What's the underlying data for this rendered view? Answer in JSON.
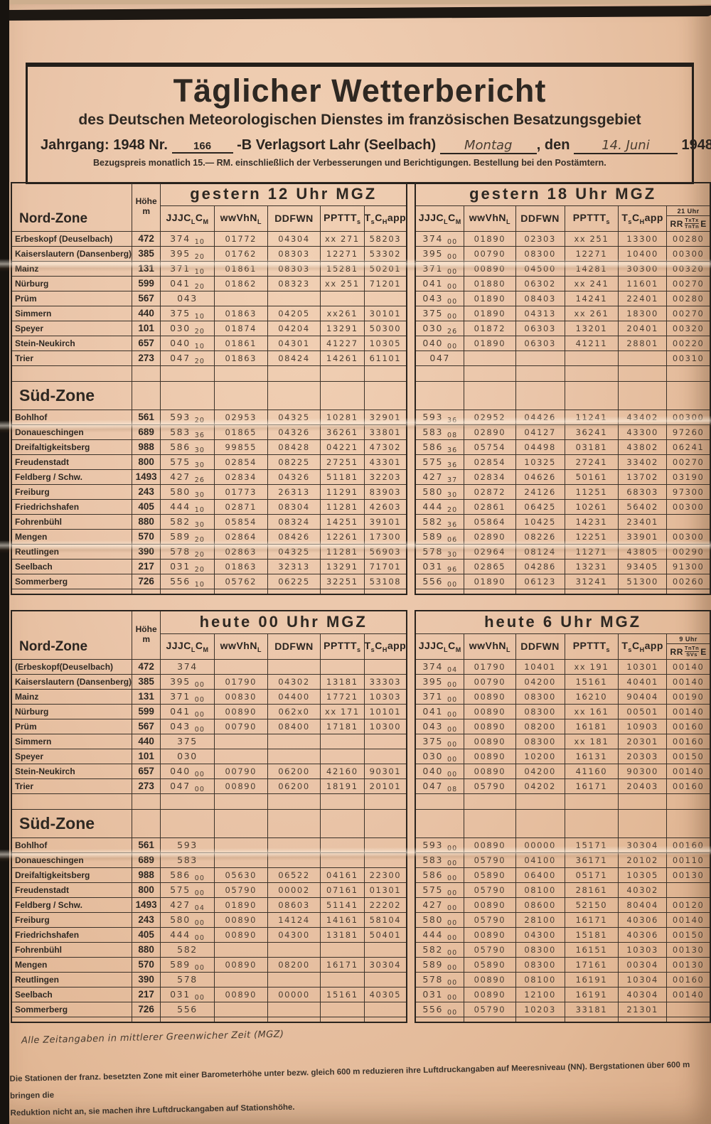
{
  "page": {
    "title": "Täglicher Wetterbericht",
    "subtitle": "des Deutschen Meteorologischen Dienstes im französischen Besatzungsgebiet",
    "issue_line": {
      "prefix": "Jahrgang: 1948 Nr.",
      "number": "166",
      "middle": "-B Verlagsort Lahr (Seelbach)",
      "weekday": "Montag",
      "comma_den": ", den",
      "date": "14. Juni",
      "year": "1948"
    },
    "price_line": "Bezugspreis monatlich 15.— RM. einschließlich der Verbesserungen und Berichtigungen. Bestellung bei den Postämtern.",
    "footnote_handwritten": "Alle Zeitangaben in mittlerer Greenwicher Zeit (MGZ)",
    "footnote_printed_1": "Die Stationen der franz. besetzten Zone mit einer Barometerhöhe unter bezw. gleich 600 m reduzieren ihre Luftdruckangaben auf Meeresniveau (NN). Bergstationen über 600 m bringen die",
    "footnote_printed_2": "Reduktion nicht an, sie machen ihre Luftdruckangaben auf Stationshöhe."
  },
  "tables": [
    {
      "id": "gestern",
      "zone_label": "Nord-Zone",
      "sued_label": "Süd-Zone",
      "hoehe_label": "Höhe",
      "hoehe_unit": "m",
      "left_title": "gestern 12 Uhr MGZ",
      "right_title": "gestern 18 Uhr MGZ",
      "col_headers": [
        "JJJC~L~C~M~",
        "wwVhN~L~",
        "DDFWN",
        "PPTTT~s~",
        "T~s~C~H~app"
      ],
      "rr_header": {
        "time": "21 Uhr",
        "pre": "RR",
        "frac_top": "TxTx",
        "frac_bottom": "TnTn",
        "post": "E"
      },
      "nord_rows": [
        {
          "station": "Erbeskopf (Deuselbach)",
          "hoehe": "472",
          "left_cells": [
            "374 10",
            "01772",
            "04304",
            "xx 271",
            "58203"
          ],
          "right_cells": [
            "374 00",
            "01890",
            "02303",
            "xx 251",
            "13300",
            "00280"
          ]
        },
        {
          "station": "Kaiserslautern (Dansenberg)",
          "hoehe": "385",
          "left_cells": [
            "395 20",
            "01762",
            "08303",
            "12271",
            "53302"
          ],
          "right_cells": [
            "395 00",
            "00790",
            "08300",
            "12271",
            "10400",
            "00300"
          ]
        },
        {
          "station": "Mainz",
          "hoehe": "131",
          "left_cells": [
            "371 10",
            "01861",
            "08303",
            "15281",
            "50201"
          ],
          "right_cells": [
            "371 00",
            "00890",
            "04500",
            "14281",
            "30300",
            "00320"
          ]
        },
        {
          "station": "Nürburg",
          "hoehe": "599",
          "left_cells": [
            "041 20",
            "01862",
            "08323",
            "xx 251",
            "71201"
          ],
          "right_cells": [
            "041 00",
            "01880",
            "06302",
            "xx 241",
            "11601",
            "00270"
          ]
        },
        {
          "station": "Prüm",
          "hoehe": "567",
          "left_cells": [
            "043",
            "",
            "",
            "",
            ""
          ],
          "right_cells": [
            "043 00",
            "01890",
            "08403",
            "14241",
            "22401",
            "00280"
          ]
        },
        {
          "station": "Simmern",
          "hoehe": "440",
          "left_cells": [
            "375 10",
            "01863",
            "04205",
            "xx261",
            "30101"
          ],
          "right_cells": [
            "375 00",
            "01890",
            "04313",
            "xx 261",
            "18300",
            "00270"
          ]
        },
        {
          "station": "Speyer",
          "hoehe": "101",
          "left_cells": [
            "030 20",
            "01874",
            "04204",
            "13291",
            "50300"
          ],
          "right_cells": [
            "030 26",
            "01872",
            "06303",
            "13201",
            "20401",
            "00320"
          ]
        },
        {
          "station": "Stein-Neukirch",
          "hoehe": "657",
          "left_cells": [
            "040 10",
            "01861",
            "04301",
            "41227",
            "10305"
          ],
          "right_cells": [
            "040 00",
            "01890",
            "06303",
            "41211",
            "28801",
            "00220"
          ]
        },
        {
          "station": "Trier",
          "hoehe": "273",
          "left_cells": [
            "047 20",
            "01863",
            "08424",
            "14261",
            "61101"
          ],
          "right_cells": [
            "047",
            "",
            "",
            "",
            "",
            "00310"
          ]
        }
      ],
      "sued_rows": [
        {
          "station": "Bohlhof",
          "hoehe": "561",
          "left_cells": [
            "593 20",
            "02953",
            "04325",
            "10281",
            "32901"
          ],
          "right_cells": [
            "593 36",
            "02952",
            "04426",
            "11241",
            "43402",
            "00300"
          ]
        },
        {
          "station": "Donaueschingen",
          "hoehe": "689",
          "left_cells": [
            "583 36",
            "01865",
            "04326",
            "36261",
            "33801"
          ],
          "right_cells": [
            "583 08",
            "02890",
            "04127",
            "36241",
            "43300",
            "97260"
          ]
        },
        {
          "station": "Dreifaltigkeitsberg",
          "hoehe": "988",
          "left_cells": [
            "586 30",
            "99855",
            "08428",
            "04221",
            "47302"
          ],
          "right_cells": [
            "586 36",
            "05754",
            "04498",
            "03181",
            "43802",
            "06241"
          ]
        },
        {
          "station": "Freudenstadt",
          "hoehe": "800",
          "left_cells": [
            "575 30",
            "02854",
            "08225",
            "27251",
            "43301"
          ],
          "right_cells": [
            "575 36",
            "02854",
            "10325",
            "27241",
            "33402",
            "00270"
          ]
        },
        {
          "station": "Feldberg / Schw.",
          "hoehe": "1493",
          "left_cells": [
            "427 26",
            "02834",
            "04326",
            "51181",
            "32203"
          ],
          "right_cells": [
            "427 37",
            "02834",
            "04626",
            "50161",
            "13702",
            "03190"
          ]
        },
        {
          "station": "Freiburg",
          "hoehe": "243",
          "left_cells": [
            "580 30",
            "01773",
            "26313",
            "11291",
            "83903"
          ],
          "right_cells": [
            "580 30",
            "02872",
            "24126",
            "11251",
            "68303",
            "97300"
          ]
        },
        {
          "station": "Friedrichshafen",
          "hoehe": "405",
          "left_cells": [
            "444 10",
            "02871",
            "08304",
            "11281",
            "42603"
          ],
          "right_cells": [
            "444 20",
            "02861",
            "06425",
            "10261",
            "56402",
            "00300"
          ]
        },
        {
          "station": "Fohrenbühl",
          "hoehe": "880",
          "left_cells": [
            "582 30",
            "05854",
            "08324",
            "14251",
            "39101"
          ],
          "right_cells": [
            "582 36",
            "05864",
            "10425",
            "14231",
            "23401",
            ""
          ]
        },
        {
          "station": "Mengen",
          "hoehe": "570",
          "left_cells": [
            "589 20",
            "02864",
            "08426",
            "12261",
            "17300"
          ],
          "right_cells": [
            "589 06",
            "02890",
            "08226",
            "12251",
            "33901",
            "00300"
          ]
        },
        {
          "station": "Reutlingen",
          "hoehe": "390",
          "left_cells": [
            "578 20",
            "02863",
            "04325",
            "11281",
            "56903"
          ],
          "right_cells": [
            "578 30",
            "02964",
            "08124",
            "11271",
            "43805",
            "00290"
          ]
        },
        {
          "station": "Seelbach",
          "hoehe": "217",
          "left_cells": [
            "031 20",
            "01863",
            "32313",
            "13291",
            "71701"
          ],
          "right_cells": [
            "031 96",
            "02865",
            "04286",
            "13231",
            "93405",
            "91300"
          ]
        },
        {
          "station": "Sommerberg",
          "hoehe": "726",
          "left_cells": [
            "556 10",
            "05762",
            "06225",
            "32251",
            "53108"
          ],
          "right_cells": [
            "556 00",
            "01890",
            "06123",
            "31241",
            "51300",
            "00260"
          ]
        }
      ]
    },
    {
      "id": "heute",
      "zone_label": "Nord-Zone",
      "sued_label": "Süd-Zone",
      "hoehe_label": "Höhe",
      "hoehe_unit": "m",
      "left_title": "heute 00 Uhr MGZ",
      "right_title": "heute 6 Uhr MGZ",
      "col_headers": [
        "JJJC~L~C~M~",
        "wwVhN~L~",
        "DDFWN",
        "PPTTT~s~",
        "T~s~C~H~app"
      ],
      "rr_header": {
        "time": "9 Uhr",
        "pre": "RR",
        "frac_top": "TnTn",
        "frac_bottom": "SVs",
        "post": "E"
      },
      "nord_rows": [
        {
          "station": "(Erbeskopf(Deuselbach)",
          "hoehe": "472",
          "left_cells": [
            "374",
            "",
            "",
            "",
            ""
          ],
          "right_cells": [
            "374 04",
            "01790",
            "10401",
            "xx 191",
            "10301",
            "00140"
          ]
        },
        {
          "station": "Kaiserslautern (Dansenberg)",
          "hoehe": "385",
          "left_cells": [
            "395 00",
            "01790",
            "04302",
            "13181",
            "33303"
          ],
          "right_cells": [
            "395 00",
            "00790",
            "04200",
            "15161",
            "40401",
            "00140"
          ]
        },
        {
          "station": "Mainz",
          "hoehe": "131",
          "left_cells": [
            "371 00",
            "00830",
            "04400",
            "17721",
            "10303"
          ],
          "right_cells": [
            "371 00",
            "00890",
            "08300",
            "16210",
            "90404",
            "00190"
          ]
        },
        {
          "station": "Nürburg",
          "hoehe": "599",
          "left_cells": [
            "041 00",
            "00890",
            "062x0",
            "xx 171",
            "10101"
          ],
          "right_cells": [
            "041 00",
            "00890",
            "08300",
            "xx 161",
            "00501",
            "00140"
          ]
        },
        {
          "station": "Prüm",
          "hoehe": "567",
          "left_cells": [
            "043 00",
            "00790",
            "08400",
            "17181",
            "10300"
          ],
          "right_cells": [
            "043 00",
            "00890",
            "08200",
            "16181",
            "10903",
            "00160"
          ]
        },
        {
          "station": "Simmern",
          "hoehe": "440",
          "left_cells": [
            "375",
            "",
            "",
            "",
            ""
          ],
          "right_cells": [
            "375 00",
            "00890",
            "08300",
            "xx 181",
            "20301",
            "00160"
          ]
        },
        {
          "station": "Speyer",
          "hoehe": "101",
          "left_cells": [
            "030",
            "",
            "",
            "",
            ""
          ],
          "right_cells": [
            "030 00",
            "00890",
            "10200",
            "16131",
            "20303",
            "00150"
          ]
        },
        {
          "station": "Stein-Neukirch",
          "hoehe": "657",
          "left_cells": [
            "040 00",
            "00790",
            "06200",
            "42160",
            "90301"
          ],
          "right_cells": [
            "040 00",
            "00890",
            "04200",
            "41160",
            "90300",
            "00140"
          ]
        },
        {
          "station": "Trier",
          "hoehe": "273",
          "left_cells": [
            "047 00",
            "00890",
            "06200",
            "18191",
            "20101"
          ],
          "right_cells": [
            "047 08",
            "05790",
            "04202",
            "16171",
            "20403",
            "00160"
          ]
        }
      ],
      "sued_rows": [
        {
          "station": "Bohlhof",
          "hoehe": "561",
          "left_cells": [
            "593",
            "",
            "",
            "",
            ""
          ],
          "right_cells": [
            "593 00",
            "00890",
            "00000",
            "15171",
            "30304",
            "00160"
          ]
        },
        {
          "station": "Donaueschingen",
          "hoehe": "689",
          "left_cells": [
            "583",
            "",
            "",
            "",
            ""
          ],
          "right_cells": [
            "583 00",
            "05790",
            "04100",
            "36171",
            "20102",
            "00110"
          ]
        },
        {
          "station": "Dreifaltigkeitsberg",
          "hoehe": "988",
          "left_cells": [
            "586 00",
            "05630",
            "06522",
            "04161",
            "22300"
          ],
          "right_cells": [
            "586 00",
            "05890",
            "06400",
            "05171",
            "10305",
            "00130"
          ]
        },
        {
          "station": "Freudenstadt",
          "hoehe": "800",
          "left_cells": [
            "575 00",
            "05790",
            "00002",
            "07161",
            "01301"
          ],
          "right_cells": [
            "575 00",
            "05790",
            "08100",
            "28161",
            "40302",
            ""
          ]
        },
        {
          "station": "Feldberg / Schw.",
          "hoehe": "1493",
          "left_cells": [
            "427 04",
            "01890",
            "08603",
            "51141",
            "22202"
          ],
          "right_cells": [
            "427 00",
            "00890",
            "08600",
            "52150",
            "80404",
            "00120"
          ]
        },
        {
          "station": "Freiburg",
          "hoehe": "243",
          "left_cells": [
            "580 00",
            "00890",
            "14124",
            "14161",
            "58104"
          ],
          "right_cells": [
            "580 00",
            "05790",
            "28100",
            "16171",
            "40306",
            "00140"
          ]
        },
        {
          "station": "Friedrichshafen",
          "hoehe": "405",
          "left_cells": [
            "444 00",
            "00890",
            "04300",
            "13181",
            "50401"
          ],
          "right_cells": [
            "444 00",
            "00890",
            "04300",
            "15181",
            "40306",
            "00150"
          ]
        },
        {
          "station": "Fohrenbühl",
          "hoehe": "880",
          "left_cells": [
            "582",
            "",
            "",
            "",
            ""
          ],
          "right_cells": [
            "582 00",
            "05790",
            "08300",
            "16151",
            "10303",
            "00130"
          ]
        },
        {
          "station": "Mengen",
          "hoehe": "570",
          "left_cells": [
            "589 00",
            "00890",
            "08200",
            "16171",
            "30304"
          ],
          "right_cells": [
            "589 00",
            "05890",
            "08300",
            "17161",
            "00304",
            "00130"
          ]
        },
        {
          "station": "Reutlingen",
          "hoehe": "390",
          "left_cells": [
            "578",
            "",
            "",
            "",
            ""
          ],
          "right_cells": [
            "578 00",
            "00890",
            "08100",
            "16191",
            "10304",
            "00160"
          ]
        },
        {
          "station": "Seelbach",
          "hoehe": "217",
          "left_cells": [
            "031 00",
            "00890",
            "00000",
            "15161",
            "40305"
          ],
          "right_cells": [
            "031 00",
            "00890",
            "12100",
            "16191",
            "40304",
            "00140"
          ]
        },
        {
          "station": "Sommerberg",
          "hoehe": "726",
          "left_cells": [
            "556",
            "",
            "",
            "",
            ""
          ],
          "right_cells": [
            "556 00",
            "05790",
            "10203",
            "33181",
            "21301",
            ""
          ]
        }
      ]
    }
  ]
}
